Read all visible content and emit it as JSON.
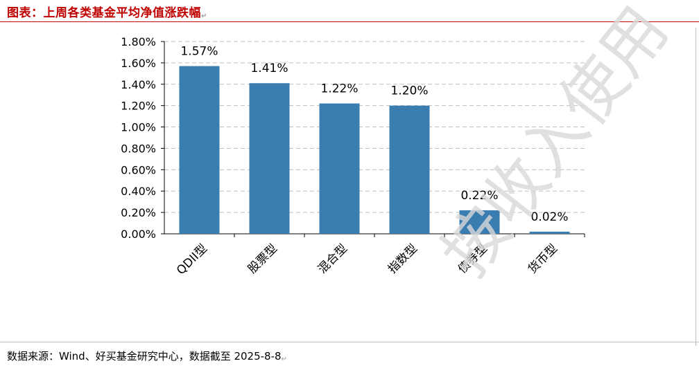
{
  "header": {
    "title": "图表：上周各类基金平均净值涨跌幅"
  },
  "watermark": "按收入使用",
  "footer": {
    "source": "数据来源：Wind、好买基金研究中心，数据截至 2025-8-8"
  },
  "chart_data": {
    "type": "bar",
    "categories": [
      "QDII型",
      "股票型",
      "混合型",
      "指数型",
      "债券型",
      "货币型"
    ],
    "values": [
      1.57,
      1.41,
      1.22,
      1.2,
      0.22,
      0.02
    ],
    "data_labels": [
      "1.57%",
      "1.41%",
      "1.22%",
      "1.20%",
      "0.22%",
      "0.02%"
    ],
    "ylim": [
      0,
      1.8
    ],
    "yticks": [
      0,
      0.2,
      0.4,
      0.6,
      0.8,
      1.0,
      1.2,
      1.4,
      1.6,
      1.8
    ],
    "ytick_labels": [
      "0.00%",
      "0.20%",
      "0.40%",
      "0.60%",
      "0.80%",
      "1.00%",
      "1.20%",
      "1.40%",
      "1.60%",
      "1.80%"
    ],
    "grid": true,
    "bar_color": "#3a7eb1",
    "grid_color": "#bfbfbf"
  }
}
